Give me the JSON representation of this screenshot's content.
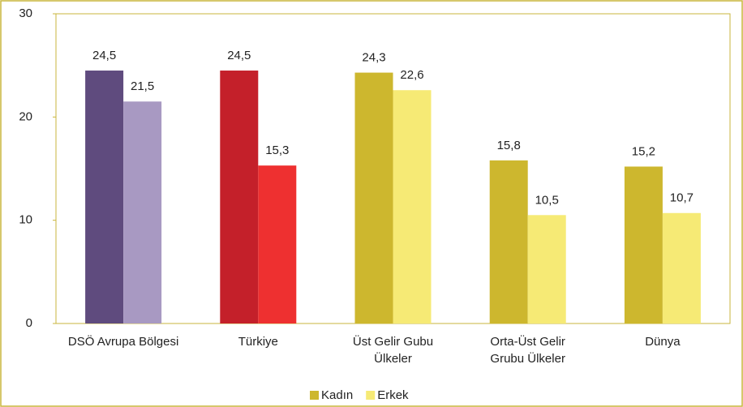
{
  "chart_data": {
    "type": "bar",
    "categories": [
      "DSÖ Avrupa Bölgesi",
      "Türkiye",
      "Üst Gelir Gubu\nÜlkeler",
      "Orta-Üst Gelir\nGrubu Ülkeler",
      "Dünya"
    ],
    "series": [
      {
        "name": "Kadın",
        "color": "#cdb72e",
        "colors": [
          "#5f4b7e",
          "#c4202a",
          "#cdb72e",
          "#cdb72e",
          "#cdb72e"
        ],
        "values": [
          24.5,
          24.5,
          24.3,
          15.8,
          15.2
        ],
        "value_labels": [
          "24,5",
          "24,5",
          "24,3",
          "15,8",
          "15,2"
        ]
      },
      {
        "name": "Erkek",
        "color": "#f6ea75",
        "colors": [
          "#a899c2",
          "#ee3030",
          "#f6ea75",
          "#f6ea75",
          "#f6ea75"
        ],
        "values": [
          21.5,
          15.3,
          22.6,
          10.5,
          10.7
        ],
        "value_labels": [
          "21,5",
          "15,3",
          "22,6",
          "10,5",
          "10,7"
        ]
      }
    ],
    "ylim": [
      0,
      30
    ],
    "yticks": [
      0,
      10,
      20,
      30
    ],
    "legend": "bottom"
  }
}
